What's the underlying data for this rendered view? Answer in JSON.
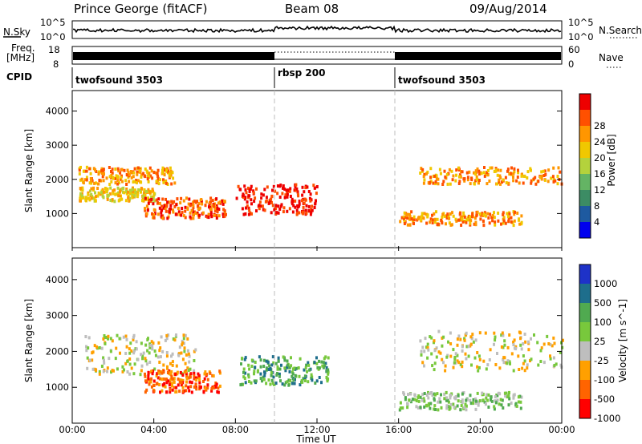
{
  "header": {
    "station": "Prince George (fitACF)",
    "beam": "Beam 08",
    "date": "09/Aug/2014"
  },
  "top_panels": {
    "nsky_label": "N.Sky",
    "nsky_ticks": [
      "10^5",
      "10^0"
    ],
    "nsearch_label": "N.Search",
    "nsearch_ticks": [
      "10^5",
      "10^0"
    ],
    "freq_label_1": "Freq.",
    "freq_label_2": "[MHz]",
    "freq_ticks": [
      "18",
      "8"
    ],
    "nave_label": "Nave",
    "nave_ticks": [
      "60",
      "0"
    ],
    "cpid_label": "CPID",
    "cpid_segments": [
      {
        "label": "twofsound 3503",
        "start": 0,
        "end": 10
      },
      {
        "label": "rbsp 200",
        "start": 10,
        "end": 16
      },
      {
        "label": "twofsound 3503",
        "start": 16,
        "end": 24
      }
    ]
  },
  "chart_data": [
    {
      "type": "heatmap",
      "name": "power",
      "ylabel": "Slant Range [km]",
      "y_ticks": [
        "1000",
        "2000",
        "3000",
        "4000"
      ],
      "ylim": [
        0,
        4600
      ],
      "colorbar_label": "Power [dB]",
      "colorbar_ticks": [
        "4",
        "8",
        "12",
        "16",
        "20",
        "24",
        "28"
      ],
      "colors": [
        "#0000ee",
        "#1e5aa0",
        "#3c8c64",
        "#64b464",
        "#b4d23c",
        "#f0c800",
        "#ff9600",
        "#ff5000",
        "#ee0000"
      ],
      "bands": [
        {
          "t0": 0.3,
          "t1": 5.0,
          "r0": 1900,
          "r1": 2400,
          "level": 6
        },
        {
          "t0": 0.3,
          "t1": 4.0,
          "r0": 1400,
          "r1": 1800,
          "level": 5
        },
        {
          "t0": 3.5,
          "t1": 7.5,
          "r0": 900,
          "r1": 1500,
          "level": 7
        },
        {
          "t0": 8.0,
          "t1": 12.0,
          "r0": 1000,
          "r1": 1900,
          "level": 8
        },
        {
          "t0": 16.0,
          "t1": 22.0,
          "r0": 700,
          "r1": 1100,
          "level": 6
        },
        {
          "t0": 17.0,
          "t1": 24.0,
          "r0": 1900,
          "r1": 2400,
          "level": 6
        }
      ]
    },
    {
      "type": "heatmap",
      "name": "velocity",
      "ylabel": "Slant Range [km]",
      "y_ticks": [
        "1000",
        "2000",
        "3000",
        "4000"
      ],
      "ylim": [
        0,
        4600
      ],
      "xlabel": "Time UT",
      "x_ticks": [
        "00:00",
        "04:00",
        "08:00",
        "12:00",
        "16:00",
        "20:00",
        "00:00"
      ],
      "xlim": [
        0,
        24
      ],
      "colorbar_label": "Velocity [m s^-1]",
      "colorbar_ticks": [
        "1000",
        "500",
        "100",
        "25",
        "-25",
        "-100",
        "-500",
        "-1000"
      ],
      "colors": [
        "#1e32c8",
        "#1e6e8c",
        "#50aa50",
        "#78c83c",
        "#bebebe",
        "#ffa000",
        "#ff6400",
        "#ff0000"
      ],
      "bands": [
        {
          "t0": 0.5,
          "t1": 6.0,
          "r0": 1400,
          "r1": 2500,
          "level": 4
        },
        {
          "t0": 3.5,
          "t1": 7.2,
          "r0": 900,
          "r1": 1500,
          "level": 6
        },
        {
          "t0": 8.2,
          "t1": 12.5,
          "r0": 1100,
          "r1": 1900,
          "level": 2
        },
        {
          "t0": 16.0,
          "t1": 22.0,
          "r0": 400,
          "r1": 900,
          "level": 3
        },
        {
          "t0": 17.0,
          "t1": 24.0,
          "r0": 1500,
          "r1": 2600,
          "level": 4
        }
      ]
    }
  ]
}
